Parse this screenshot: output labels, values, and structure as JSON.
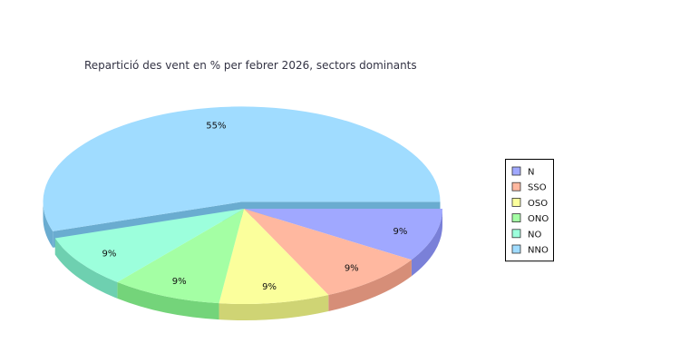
{
  "chart_data": {
    "type": "pie",
    "title": "Repartició des vent en % per febrer 2026, sectors dominants",
    "slices": [
      {
        "label": "N",
        "value": 9,
        "value_label": "9%",
        "color": "#a0a8ff",
        "side_color": "#7a80d8"
      },
      {
        "label": "SSO",
        "value": 9,
        "value_label": "9%",
        "color": "#ffb8a0",
        "side_color": "#d68e78"
      },
      {
        "label": "OSO",
        "value": 9,
        "value_label": "9%",
        "color": "#fbff9c",
        "side_color": "#cfd474"
      },
      {
        "label": "ONO",
        "value": 9,
        "value_label": "9%",
        "color": "#a4ffa4",
        "side_color": "#74d47a"
      },
      {
        "label": "NO",
        "value": 9,
        "value_label": "9%",
        "color": "#9cffdc",
        "side_color": "#6ed0b0"
      },
      {
        "label": "NNO",
        "value": 55,
        "value_label": "55%",
        "color": "#a0dcff",
        "side_color": "#6aacd0"
      }
    ],
    "exploded": "NNO",
    "legend_position": "right"
  }
}
